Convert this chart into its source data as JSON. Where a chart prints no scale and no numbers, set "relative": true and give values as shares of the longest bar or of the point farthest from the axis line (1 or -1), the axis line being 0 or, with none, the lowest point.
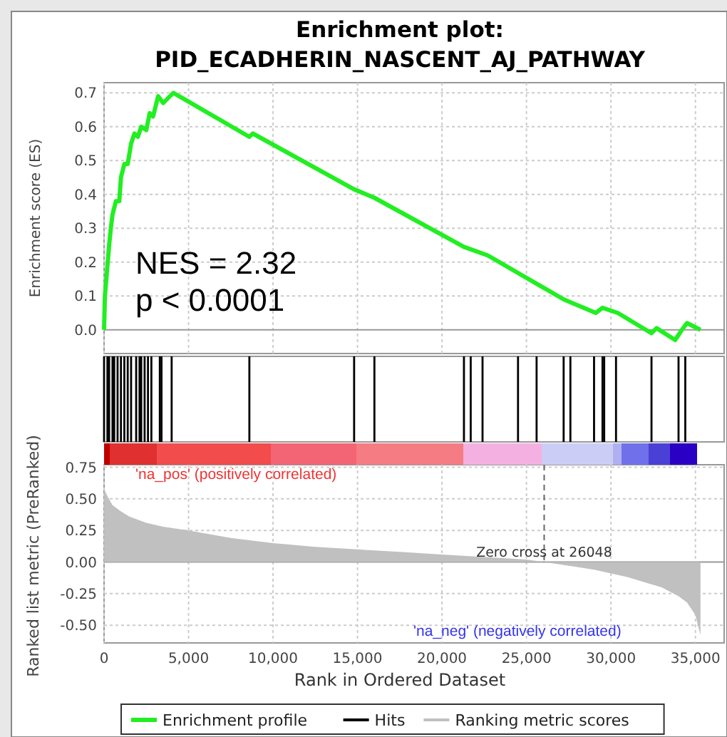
{
  "chart_data": [
    {
      "type": "line",
      "title": "Enrichment plot:\nPID_ECADHERIN_NASCENT_AJ_PATHWAY",
      "ylabel": "Enrichment score (ES)",
      "xlim": [
        0,
        36700
      ],
      "xticks": [
        0,
        5000,
        10000,
        15000,
        20000,
        25000,
        30000,
        35000
      ],
      "ylim": [
        -0.07,
        0.73
      ],
      "yticks": [
        {
          "value": 0,
          "label": "0.0"
        },
        0.1,
        0.2,
        0.3,
        0.4,
        0.5,
        0.6,
        0.7
      ],
      "grid": true,
      "tick_labels": "y",
      "legend": "bottom",
      "annotations": [
        "NES = 2.32",
        "p < 0.0001"
      ],
      "series": [
        {
          "name": "Enrichment profile",
          "color": "#22ee22",
          "x": [
            0,
            50,
            150,
            300,
            400,
            500,
            700,
            900,
            1000,
            1200,
            1400,
            1600,
            1800,
            2000,
            2200,
            2500,
            2700,
            2900,
            3200,
            3500,
            4100,
            8600,
            8800,
            14800,
            16000,
            21300,
            22700,
            27200,
            29100,
            29500,
            30400,
            32400,
            32700,
            33800,
            34200,
            34500,
            35300
          ],
          "values": [
            0,
            0.1,
            0.16,
            0.25,
            0.3,
            0.34,
            0.38,
            0.38,
            0.45,
            0.49,
            0.49,
            0.55,
            0.58,
            0.57,
            0.6,
            0.59,
            0.64,
            0.63,
            0.69,
            0.67,
            0.7,
            0.57,
            0.58,
            0.415,
            0.39,
            0.245,
            0.22,
            0.09,
            0.05,
            0.065,
            0.05,
            -0.01,
            0.005,
            -0.03,
            0.0,
            0.02,
            0.0
          ]
        }
      ]
    },
    {
      "type": "bar",
      "relative": true,
      "tick_labels": false,
      "legend": "bottom",
      "xlim": [
        0,
        36700
      ],
      "series": [
        {
          "name": "Hits",
          "color": "#000000",
          "x": [
            0,
            200,
            300,
            500,
            600,
            800,
            1000,
            1200,
            1400,
            1600,
            1900,
            2100,
            2200,
            2400,
            2600,
            2800,
            3300,
            3400,
            4000,
            8600,
            14800,
            16000,
            21300,
            21700,
            22400,
            24500,
            25600,
            27200,
            27600,
            29000,
            29500,
            29600,
            30300,
            32400,
            34000,
            34400
          ],
          "values": [
            1,
            1,
            1,
            1,
            1,
            1,
            1,
            1,
            1,
            1,
            1,
            1,
            1,
            1,
            1,
            1,
            1,
            1,
            1,
            1,
            1,
            1,
            1,
            1,
            1,
            1,
            1,
            1,
            1,
            1,
            1,
            1,
            1,
            1,
            1,
            1
          ]
        }
      ]
    },
    {
      "type": "area",
      "xlabel": "Rank in Ordered Dataset",
      "ylabel": "Ranked list metric (PreRanked)",
      "xlim": [
        0,
        36700
      ],
      "xticks": [
        {
          "value": 0,
          "label": "0"
        },
        {
          "value": 5000,
          "label": "5,000"
        },
        {
          "value": 10000,
          "label": "10,000"
        },
        {
          "value": 15000,
          "label": "15,000"
        },
        {
          "value": 20000,
          "label": "20,000"
        },
        {
          "value": 25000,
          "label": "25,000"
        },
        {
          "value": 30000,
          "label": "30,000"
        },
        {
          "value": 35000,
          "label": "35,000"
        }
      ],
      "ylim": [
        -0.64,
        0.77
      ],
      "yticks": [
        {
          "value": -0.5,
          "label": "-0.50"
        },
        {
          "value": -0.25,
          "label": "-0.25"
        },
        {
          "value": 0,
          "label": "0.00"
        },
        {
          "value": 0.25,
          "label": "0.25"
        },
        {
          "value": 0.5,
          "label": "0.50"
        },
        {
          "value": 0.75,
          "label": "0.75"
        }
      ],
      "grid": true,
      "legend": "bottom",
      "annotations": [
        "'na_pos' (positively correlated)",
        "'na_neg' (negatively correlated)"
      ],
      "ref_lines": [
        {
          "axis": "x",
          "value": 26048,
          "label": "Zero cross at 26048",
          "line_style": "dashed"
        }
      ],
      "series": [
        {
          "name": "Ranking metric scores",
          "color": "#c0c0c0",
          "x": [
            0,
            200,
            500,
            1000,
            1500,
            2500,
            3500,
            5000,
            7500,
            10000,
            12500,
            15000,
            17500,
            20000,
            22500,
            25000,
            26048,
            27000,
            28000,
            29000,
            30000,
            31000,
            32000,
            33000,
            34000,
            34500,
            35000,
            35300
          ],
          "values": [
            0.58,
            0.52,
            0.45,
            0.4,
            0.36,
            0.31,
            0.28,
            0.25,
            0.19,
            0.15,
            0.12,
            0.1,
            0.08,
            0.06,
            0.04,
            0.02,
            0,
            -0.02,
            -0.04,
            -0.06,
            -0.09,
            -0.12,
            -0.16,
            -0.2,
            -0.27,
            -0.32,
            -0.42,
            -0.58
          ]
        }
      ]
    }
  ]
}
